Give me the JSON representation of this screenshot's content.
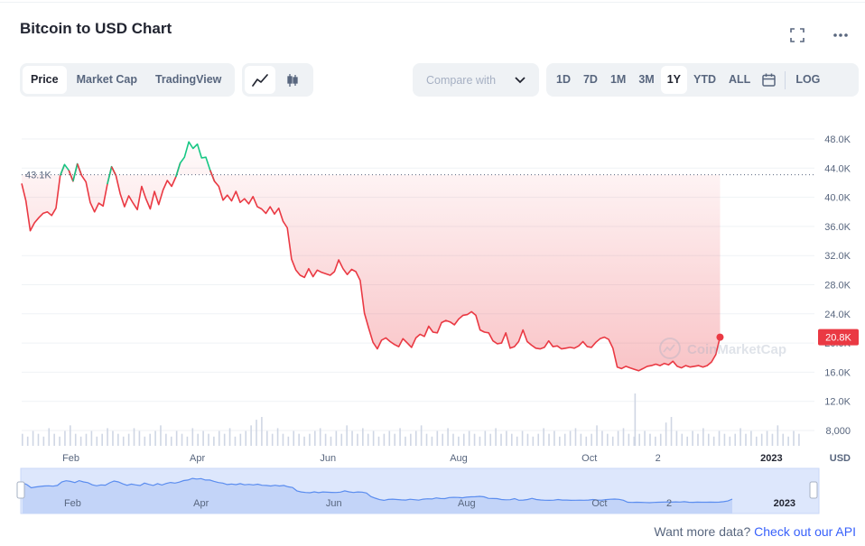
{
  "header": {
    "title": "Bitcoin to USD Chart",
    "fullscreen_icon": "fullscreen-icon",
    "more_icon": "more-dots-icon"
  },
  "tabs": [
    {
      "label": "Price",
      "active": true
    },
    {
      "label": "Market Cap",
      "active": false
    },
    {
      "label": "TradingView",
      "active": false
    }
  ],
  "chart_types": [
    {
      "icon": "line-chart-icon",
      "active": true
    },
    {
      "icon": "candlestick-icon",
      "active": false
    }
  ],
  "compare": {
    "placeholder": "Compare with",
    "icon": "chevron-down-icon"
  },
  "ranges": [
    {
      "label": "1D",
      "active": false
    },
    {
      "label": "7D",
      "active": false
    },
    {
      "label": "1M",
      "active": false
    },
    {
      "label": "3M",
      "active": false
    },
    {
      "label": "1Y",
      "active": true
    },
    {
      "label": "YTD",
      "active": false
    },
    {
      "label": "ALL",
      "active": false
    }
  ],
  "calendar_icon": "calendar-icon",
  "log_label": "LOG",
  "watermark": "CoinMarketCap",
  "footer": {
    "text": "Want more data?",
    "link": "Check out our API"
  },
  "colors": {
    "down": "#ea3943",
    "up": "#16c784",
    "accent": "#3861fb",
    "navigator": "#5b8def"
  },
  "chart_data": {
    "type": "line",
    "currency": "USD",
    "reference_label": "43.1K",
    "reference_value": 43100,
    "current_label": "20.8K",
    "current_value": 20800,
    "ylim": [
      0,
      52000
    ],
    "y_ticks": [
      {
        "label": "48.0K",
        "value": 48000
      },
      {
        "label": "44.0K",
        "value": 44000
      },
      {
        "label": "40.0K",
        "value": 40000
      },
      {
        "label": "36.0K",
        "value": 36000
      },
      {
        "label": "32.0K",
        "value": 32000
      },
      {
        "label": "28.0K",
        "value": 28000
      },
      {
        "label": "24.0K",
        "value": 24000
      },
      {
        "label": "20.0K",
        "value": 20000
      },
      {
        "label": "16.0K",
        "value": 16000
      },
      {
        "label": "12.0K",
        "value": 12000
      },
      {
        "label": "8,000",
        "value": 8000
      }
    ],
    "x_ticks": [
      {
        "label": "Feb",
        "x": 23,
        "bold": false
      },
      {
        "label": "Apr",
        "x": 82,
        "bold": false
      },
      {
        "label": "Jun",
        "x": 143,
        "bold": false
      },
      {
        "label": "Aug",
        "x": 204,
        "bold": false
      },
      {
        "label": "Oct",
        "x": 265,
        "bold": false
      },
      {
        "label": "2",
        "x": 297,
        "bold": false
      },
      {
        "label": "2023",
        "x": 350,
        "bold": true
      }
    ],
    "x_range": [
      0,
      365
    ],
    "series": [
      {
        "values": [
          [
            0,
            41900
          ],
          [
            2,
            39500
          ],
          [
            4,
            35400
          ],
          [
            6,
            36500
          ],
          [
            8,
            37200
          ],
          [
            10,
            37800
          ],
          [
            12,
            38000
          ],
          [
            14,
            37500
          ],
          [
            16,
            38500
          ],
          [
            18,
            43000
          ],
          [
            20,
            44500
          ],
          [
            22,
            43700
          ],
          [
            24,
            42200
          ],
          [
            26,
            44600
          ],
          [
            28,
            43000
          ],
          [
            30,
            42100
          ],
          [
            32,
            39300
          ],
          [
            34,
            38000
          ],
          [
            36,
            39200
          ],
          [
            38,
            38800
          ],
          [
            40,
            41800
          ],
          [
            42,
            44200
          ],
          [
            44,
            43000
          ],
          [
            46,
            40500
          ],
          [
            48,
            38700
          ],
          [
            50,
            40200
          ],
          [
            52,
            39200
          ],
          [
            54,
            38300
          ],
          [
            56,
            41500
          ],
          [
            58,
            39800
          ],
          [
            60,
            38400
          ],
          [
            62,
            40800
          ],
          [
            64,
            39000
          ],
          [
            66,
            41000
          ],
          [
            68,
            42300
          ],
          [
            70,
            41500
          ],
          [
            72,
            42800
          ],
          [
            74,
            44700
          ],
          [
            76,
            45500
          ],
          [
            78,
            47600
          ],
          [
            80,
            46700
          ],
          [
            82,
            47300
          ],
          [
            84,
            45400
          ],
          [
            86,
            45500
          ],
          [
            88,
            43700
          ],
          [
            90,
            42200
          ],
          [
            92,
            41500
          ],
          [
            94,
            39600
          ],
          [
            96,
            40300
          ],
          [
            98,
            39500
          ],
          [
            100,
            40800
          ],
          [
            102,
            39300
          ],
          [
            104,
            39800
          ],
          [
            106,
            39100
          ],
          [
            108,
            40100
          ],
          [
            110,
            38700
          ],
          [
            112,
            38400
          ],
          [
            114,
            37800
          ],
          [
            116,
            38700
          ],
          [
            118,
            37700
          ],
          [
            120,
            38500
          ],
          [
            122,
            36700
          ],
          [
            124,
            35800
          ],
          [
            126,
            31500
          ],
          [
            128,
            30000
          ],
          [
            130,
            29300
          ],
          [
            132,
            29000
          ],
          [
            134,
            30200
          ],
          [
            136,
            29100
          ],
          [
            138,
            30000
          ],
          [
            140,
            29700
          ],
          [
            142,
            29500
          ],
          [
            144,
            29300
          ],
          [
            146,
            29800
          ],
          [
            148,
            31400
          ],
          [
            150,
            30200
          ],
          [
            152,
            29400
          ],
          [
            154,
            30100
          ],
          [
            156,
            29800
          ],
          [
            158,
            28600
          ],
          [
            160,
            24100
          ],
          [
            162,
            22000
          ],
          [
            164,
            20100
          ],
          [
            166,
            19200
          ],
          [
            168,
            20400
          ],
          [
            170,
            20700
          ],
          [
            172,
            20200
          ],
          [
            174,
            19800
          ],
          [
            176,
            19500
          ],
          [
            178,
            20600
          ],
          [
            180,
            20000
          ],
          [
            182,
            19400
          ],
          [
            184,
            20700
          ],
          [
            186,
            21200
          ],
          [
            188,
            20900
          ],
          [
            190,
            22300
          ],
          [
            192,
            21500
          ],
          [
            194,
            21400
          ],
          [
            196,
            22800
          ],
          [
            198,
            23100
          ],
          [
            200,
            22900
          ],
          [
            202,
            22500
          ],
          [
            204,
            23300
          ],
          [
            206,
            23800
          ],
          [
            208,
            23900
          ],
          [
            210,
            24300
          ],
          [
            212,
            23800
          ],
          [
            214,
            21800
          ],
          [
            216,
            21500
          ],
          [
            218,
            21400
          ],
          [
            220,
            20300
          ],
          [
            222,
            19900
          ],
          [
            224,
            20000
          ],
          [
            226,
            21400
          ],
          [
            228,
            19300
          ],
          [
            230,
            19500
          ],
          [
            232,
            20200
          ],
          [
            234,
            21800
          ],
          [
            236,
            20200
          ],
          [
            238,
            19700
          ],
          [
            240,
            19300
          ],
          [
            242,
            19200
          ],
          [
            244,
            19400
          ],
          [
            246,
            20300
          ],
          [
            248,
            19500
          ],
          [
            250,
            19600
          ],
          [
            252,
            19200
          ],
          [
            254,
            19300
          ],
          [
            256,
            19400
          ],
          [
            258,
            19300
          ],
          [
            260,
            19600
          ],
          [
            262,
            20200
          ],
          [
            264,
            19500
          ],
          [
            266,
            19400
          ],
          [
            268,
            20100
          ],
          [
            270,
            20600
          ],
          [
            272,
            20800
          ],
          [
            274,
            20500
          ],
          [
            276,
            19300
          ],
          [
            278,
            16700
          ],
          [
            280,
            16500
          ],
          [
            282,
            16800
          ],
          [
            284,
            16600
          ],
          [
            286,
            16400
          ],
          [
            288,
            16200
          ],
          [
            290,
            16500
          ],
          [
            292,
            16800
          ],
          [
            294,
            16900
          ],
          [
            296,
            17100
          ],
          [
            298,
            16900
          ],
          [
            300,
            17200
          ],
          [
            302,
            17000
          ],
          [
            304,
            17500
          ],
          [
            306,
            16800
          ],
          [
            308,
            16600
          ],
          [
            310,
            16900
          ],
          [
            312,
            16700
          ],
          [
            314,
            16800
          ],
          [
            316,
            16900
          ],
          [
            318,
            16700
          ],
          [
            320,
            16900
          ],
          [
            322,
            17400
          ],
          [
            324,
            18400
          ],
          [
            326,
            20800
          ]
        ]
      }
    ],
    "volume": [
      3,
      2,
      4,
      3,
      2,
      5,
      3,
      2,
      4,
      6,
      3,
      2,
      3,
      4,
      2,
      3,
      5,
      4,
      3,
      2,
      3,
      5,
      4,
      2,
      3,
      4,
      6,
      3,
      2,
      4,
      3,
      2,
      5,
      3,
      4,
      3,
      2,
      4,
      3,
      5,
      2,
      3,
      4,
      6,
      8,
      9,
      4,
      3,
      5,
      3,
      2,
      4,
      3,
      2,
      3,
      4,
      5,
      3,
      2,
      4,
      3,
      6,
      4,
      3,
      5,
      3,
      4,
      2,
      3,
      4,
      3,
      5,
      2,
      3,
      4,
      6,
      3,
      2,
      4,
      3,
      5,
      3,
      2,
      3,
      4,
      3,
      2,
      4,
      3,
      5,
      3,
      4,
      3,
      2,
      4,
      3,
      2,
      3,
      5,
      3,
      4,
      2,
      3,
      4,
      5,
      3,
      2,
      3,
      6,
      4,
      3,
      2,
      4,
      5,
      3,
      2,
      3,
      4,
      3,
      2,
      3,
      7,
      9,
      4,
      3,
      2,
      4,
      3,
      5,
      3,
      2,
      4,
      3,
      2,
      3,
      5,
      3,
      4,
      2,
      3,
      4,
      3,
      6,
      3,
      2,
      4,
      3
    ]
  }
}
